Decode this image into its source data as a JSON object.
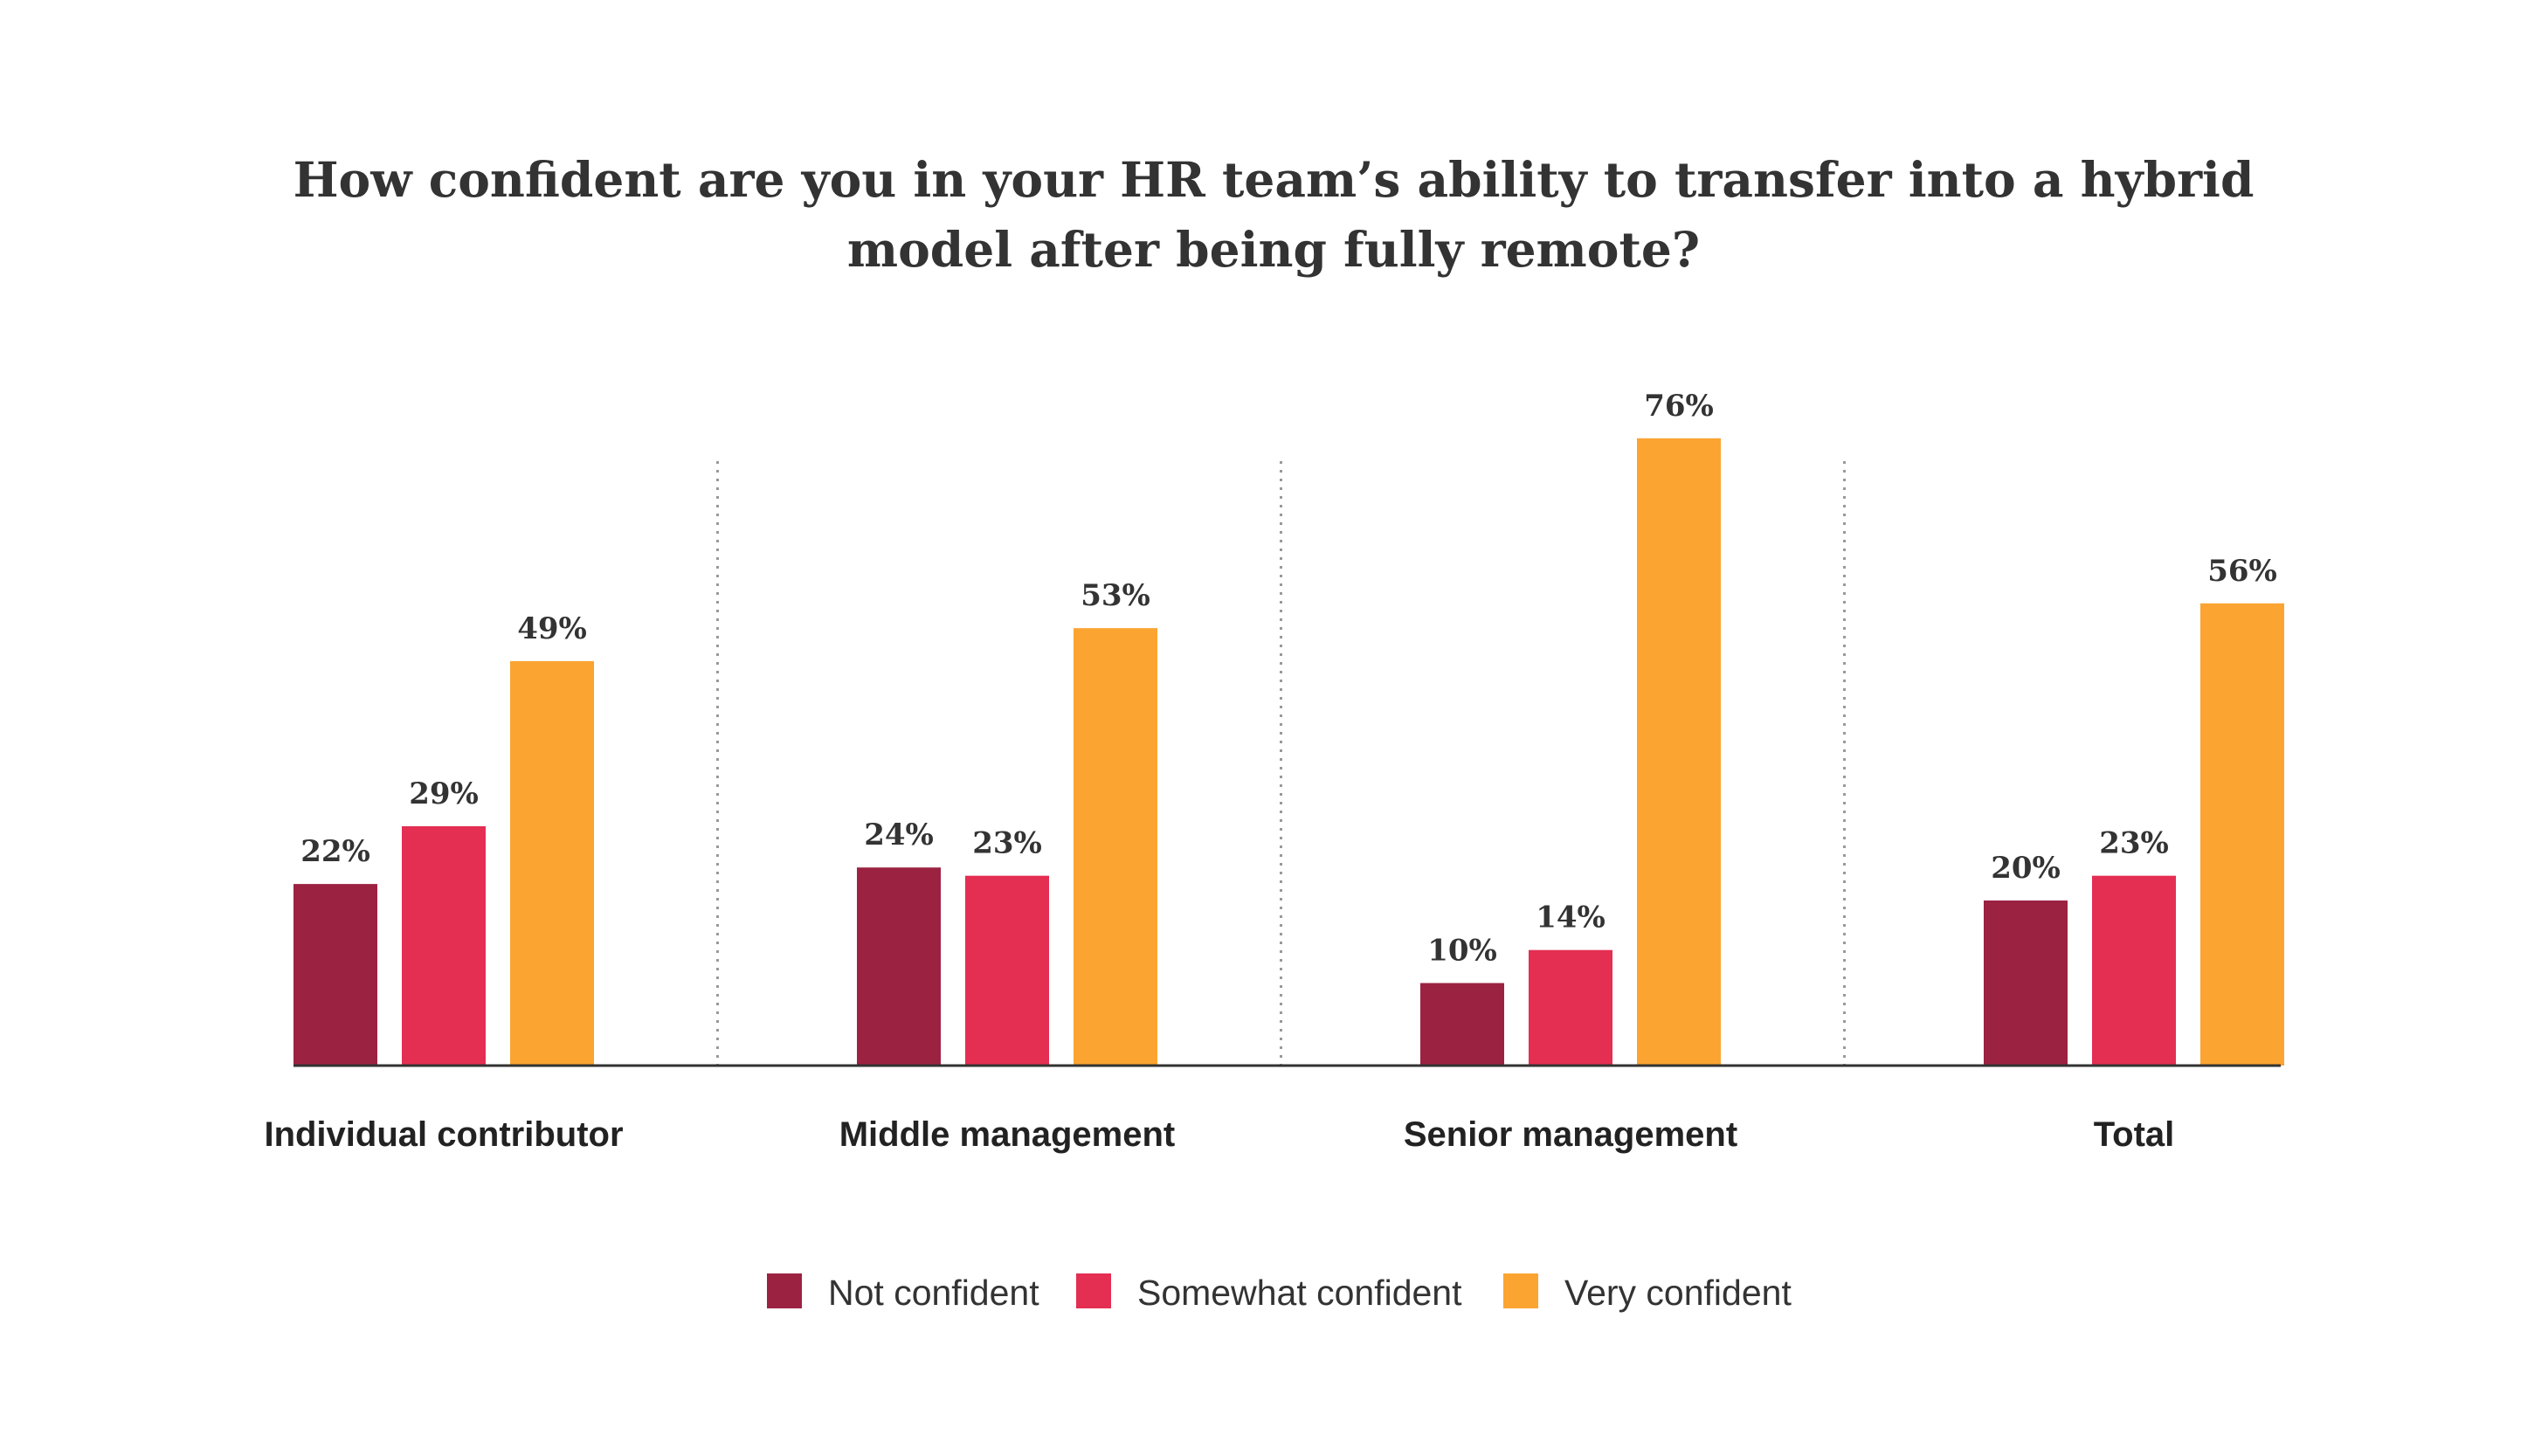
{
  "chart_data": {
    "type": "bar",
    "title_lines": [
      "How confident are you in your HR team’s ability to transfer into a hybrid",
      "model after being fully remote?"
    ],
    "categories": [
      "Individual contributor",
      "Middle management",
      "Senior management",
      "Total"
    ],
    "series": [
      {
        "name": "Not confident",
        "color": "#9C2242",
        "values": [
          22,
          24,
          10,
          20
        ]
      },
      {
        "name": "Somewhat confident",
        "color": "#E42E52",
        "values": [
          29,
          23,
          14,
          23
        ]
      },
      {
        "name": "Very confident",
        "color": "#FBA431",
        "values": [
          49,
          53,
          76,
          56
        ]
      }
    ],
    "value_suffix": "%",
    "ylim": [
      0,
      80
    ],
    "grid": false,
    "legend_position": "bottom-center",
    "baseline_color": "#333333",
    "separator_color": "#999999"
  }
}
